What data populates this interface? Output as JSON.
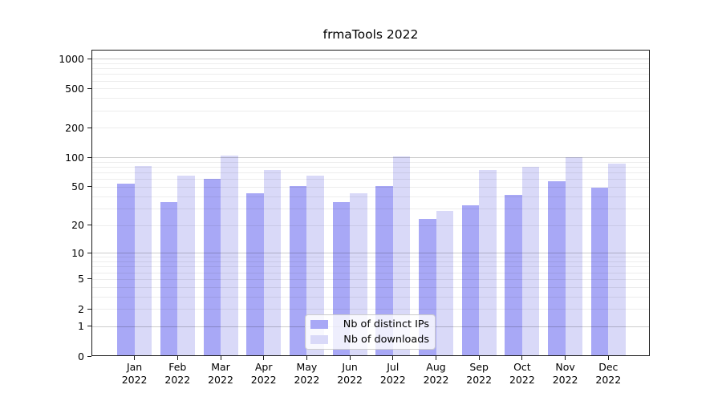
{
  "chart_data": {
    "type": "bar",
    "title": "frmaTools 2022",
    "categories": [
      "Jan 2022",
      "Feb 2022",
      "Mar 2022",
      "Apr 2022",
      "May 2022",
      "Jun 2022",
      "Jul 2022",
      "Aug 2022",
      "Sep 2022",
      "Oct 2022",
      "Nov 2022",
      "Dec 2022"
    ],
    "series": [
      {
        "name": "Nb of distinct IPs",
        "color": "#a8a8f6",
        "values": [
          54,
          35,
          60,
          43,
          51,
          35,
          51,
          23,
          32,
          41,
          57,
          49
        ]
      },
      {
        "name": "Nb of downloads",
        "color": "#d9d9f8",
        "values": [
          82,
          65,
          105,
          74,
          65,
          43,
          103,
          28,
          75,
          80,
          101,
          86
        ]
      }
    ],
    "xlabel": "",
    "ylabel": "",
    "y_scale": "symlog (position proportional to log10(1+value))",
    "y_ticks": [
      0,
      1,
      2,
      5,
      10,
      20,
      50,
      100,
      200,
      500,
      1000
    ],
    "ylim": [
      0,
      1231
    ],
    "grid": "horizontal major + minor (log decades)",
    "legend_position": "inside lower-center"
  },
  "colors": {
    "background": "#ffffff",
    "bar_distinct_ips": "#a8a8f6",
    "bar_downloads": "#d9d9f8",
    "spine": "#1a1a1a",
    "gridline_major": "#cccccc",
    "gridline_minor": "#ededed",
    "legend_border": "#cccccc"
  }
}
